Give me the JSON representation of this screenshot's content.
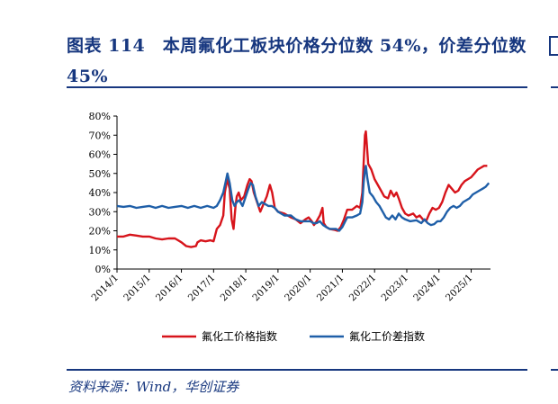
{
  "header": {
    "title": "图表 114　本周氟化工板块价格分位数 54%，价差分位数 45%"
  },
  "footer": {
    "source": "资料来源：Wind，华创证券"
  },
  "chart_data": {
    "type": "line",
    "title": "",
    "xlabel": "",
    "ylabel": "",
    "ylim": [
      0,
      80
    ],
    "yticks": [
      "0%",
      "10%",
      "20%",
      "30%",
      "40%",
      "50%",
      "60%",
      "70%",
      "80%"
    ],
    "xticks": [
      "2014/1",
      "2015/1",
      "2016/1",
      "2017/1",
      "2018/1",
      "2019/1",
      "2020/1",
      "2021/1",
      "2022/1",
      "2023/1",
      "2024/1",
      "2025/1"
    ],
    "grid": false,
    "legend_position": "bottom",
    "x_range": [
      2014.0,
      2025.6
    ],
    "series": [
      {
        "name": "氟化工价格指数",
        "color": "#d7141b",
        "points": [
          [
            2014.0,
            17
          ],
          [
            2014.2,
            17
          ],
          [
            2014.4,
            18
          ],
          [
            2014.6,
            17.5
          ],
          [
            2014.8,
            17
          ],
          [
            2015.0,
            17
          ],
          [
            2015.2,
            16
          ],
          [
            2015.4,
            15.5
          ],
          [
            2015.6,
            16
          ],
          [
            2015.8,
            16
          ],
          [
            2015.9,
            15
          ],
          [
            2016.0,
            14
          ],
          [
            2016.15,
            12
          ],
          [
            2016.3,
            11.5
          ],
          [
            2016.45,
            12
          ],
          [
            2016.5,
            14
          ],
          [
            2016.6,
            15
          ],
          [
            2016.75,
            14.5
          ],
          [
            2016.9,
            15
          ],
          [
            2017.0,
            14.5
          ],
          [
            2017.1,
            21
          ],
          [
            2017.2,
            23
          ],
          [
            2017.3,
            28
          ],
          [
            2017.35,
            40
          ],
          [
            2017.42,
            47
          ],
          [
            2017.5,
            42
          ],
          [
            2017.56,
            26
          ],
          [
            2017.62,
            21
          ],
          [
            2017.68,
            33
          ],
          [
            2017.72,
            38
          ],
          [
            2017.78,
            40
          ],
          [
            2017.85,
            36
          ],
          [
            2017.95,
            38
          ],
          [
            2018.05,
            44
          ],
          [
            2018.12,
            47
          ],
          [
            2018.18,
            46
          ],
          [
            2018.25,
            40
          ],
          [
            2018.35,
            35
          ],
          [
            2018.45,
            30
          ],
          [
            2018.55,
            34
          ],
          [
            2018.65,
            38
          ],
          [
            2018.75,
            44
          ],
          [
            2018.82,
            40
          ],
          [
            2018.9,
            32
          ],
          [
            2019.0,
            30
          ],
          [
            2019.2,
            29
          ],
          [
            2019.4,
            27
          ],
          [
            2019.55,
            26
          ],
          [
            2019.7,
            24
          ],
          [
            2019.85,
            26
          ],
          [
            2019.95,
            27
          ],
          [
            2020.05,
            25
          ],
          [
            2020.12,
            23
          ],
          [
            2020.2,
            25
          ],
          [
            2020.3,
            28
          ],
          [
            2020.38,
            32
          ],
          [
            2020.42,
            24
          ],
          [
            2020.5,
            22
          ],
          [
            2020.6,
            21
          ],
          [
            2020.75,
            20.5
          ],
          [
            2020.85,
            20
          ],
          [
            2020.95,
            22
          ],
          [
            2021.05,
            26
          ],
          [
            2021.15,
            31
          ],
          [
            2021.3,
            31
          ],
          [
            2021.45,
            33
          ],
          [
            2021.55,
            32
          ],
          [
            2021.62,
            40
          ],
          [
            2021.66,
            55
          ],
          [
            2021.7,
            70
          ],
          [
            2021.73,
            72
          ],
          [
            2021.76,
            65
          ],
          [
            2021.8,
            55
          ],
          [
            2021.9,
            52
          ],
          [
            2022.0,
            47
          ],
          [
            2022.1,
            44
          ],
          [
            2022.2,
            41
          ],
          [
            2022.3,
            38
          ],
          [
            2022.42,
            37
          ],
          [
            2022.5,
            41
          ],
          [
            2022.6,
            38
          ],
          [
            2022.68,
            40
          ],
          [
            2022.75,
            37
          ],
          [
            2022.85,
            32
          ],
          [
            2022.95,
            29
          ],
          [
            2023.05,
            28
          ],
          [
            2023.2,
            29
          ],
          [
            2023.3,
            27
          ],
          [
            2023.4,
            28
          ],
          [
            2023.5,
            26
          ],
          [
            2023.6,
            25
          ],
          [
            2023.7,
            29
          ],
          [
            2023.8,
            32
          ],
          [
            2023.9,
            31
          ],
          [
            2024.0,
            32
          ],
          [
            2024.1,
            35
          ],
          [
            2024.2,
            40
          ],
          [
            2024.3,
            44
          ],
          [
            2024.4,
            42
          ],
          [
            2024.5,
            40
          ],
          [
            2024.6,
            41
          ],
          [
            2024.7,
            44
          ],
          [
            2024.8,
            46
          ],
          [
            2024.9,
            47
          ],
          [
            2025.0,
            48
          ],
          [
            2025.1,
            50
          ],
          [
            2025.2,
            52
          ],
          [
            2025.3,
            53
          ],
          [
            2025.4,
            54
          ],
          [
            2025.5,
            54
          ]
        ]
      },
      {
        "name": "氟化工价差指数",
        "color": "#1f5fa8",
        "points": [
          [
            2014.0,
            33
          ],
          [
            2014.2,
            32.5
          ],
          [
            2014.4,
            33
          ],
          [
            2014.6,
            32
          ],
          [
            2014.8,
            32.5
          ],
          [
            2015.0,
            33
          ],
          [
            2015.2,
            32
          ],
          [
            2015.4,
            33
          ],
          [
            2015.6,
            32
          ],
          [
            2015.8,
            32.5
          ],
          [
            2016.0,
            33
          ],
          [
            2016.2,
            32
          ],
          [
            2016.4,
            33
          ],
          [
            2016.6,
            32
          ],
          [
            2016.8,
            33
          ],
          [
            2017.0,
            32
          ],
          [
            2017.1,
            33
          ],
          [
            2017.2,
            36
          ],
          [
            2017.3,
            40
          ],
          [
            2017.38,
            46
          ],
          [
            2017.43,
            50
          ],
          [
            2017.5,
            45
          ],
          [
            2017.58,
            36
          ],
          [
            2017.65,
            33
          ],
          [
            2017.72,
            35
          ],
          [
            2017.8,
            36
          ],
          [
            2017.9,
            33
          ],
          [
            2018.0,
            38
          ],
          [
            2018.08,
            42
          ],
          [
            2018.15,
            45
          ],
          [
            2018.22,
            44
          ],
          [
            2018.3,
            38
          ],
          [
            2018.4,
            33
          ],
          [
            2018.5,
            35
          ],
          [
            2018.6,
            34
          ],
          [
            2018.7,
            33
          ],
          [
            2018.8,
            33
          ],
          [
            2018.9,
            32
          ],
          [
            2019.0,
            30
          ],
          [
            2019.2,
            28
          ],
          [
            2019.4,
            28
          ],
          [
            2019.55,
            26
          ],
          [
            2019.7,
            25
          ],
          [
            2019.85,
            25
          ],
          [
            2020.0,
            25
          ],
          [
            2020.1,
            24
          ],
          [
            2020.2,
            24
          ],
          [
            2020.3,
            25
          ],
          [
            2020.4,
            23
          ],
          [
            2020.5,
            22
          ],
          [
            2020.6,
            21
          ],
          [
            2020.8,
            21
          ],
          [
            2020.9,
            20
          ],
          [
            2021.0,
            22
          ],
          [
            2021.15,
            27
          ],
          [
            2021.3,
            27
          ],
          [
            2021.45,
            28
          ],
          [
            2021.55,
            29
          ],
          [
            2021.62,
            35
          ],
          [
            2021.66,
            45
          ],
          [
            2021.7,
            52
          ],
          [
            2021.73,
            54
          ],
          [
            2021.77,
            48
          ],
          [
            2021.85,
            40
          ],
          [
            2021.95,
            38
          ],
          [
            2022.05,
            35
          ],
          [
            2022.15,
            33
          ],
          [
            2022.25,
            30
          ],
          [
            2022.35,
            27
          ],
          [
            2022.45,
            26
          ],
          [
            2022.55,
            28
          ],
          [
            2022.65,
            26
          ],
          [
            2022.75,
            29
          ],
          [
            2022.85,
            27
          ],
          [
            2022.95,
            26
          ],
          [
            2023.1,
            25
          ],
          [
            2023.3,
            25.5
          ],
          [
            2023.45,
            24
          ],
          [
            2023.55,
            26
          ],
          [
            2023.65,
            24
          ],
          [
            2023.75,
            23
          ],
          [
            2023.85,
            23.5
          ],
          [
            2023.95,
            25
          ],
          [
            2024.05,
            25
          ],
          [
            2024.15,
            27
          ],
          [
            2024.25,
            30
          ],
          [
            2024.35,
            32
          ],
          [
            2024.45,
            33
          ],
          [
            2024.55,
            32
          ],
          [
            2024.65,
            33
          ],
          [
            2024.75,
            35
          ],
          [
            2024.85,
            36
          ],
          [
            2024.95,
            37
          ],
          [
            2025.05,
            39
          ],
          [
            2025.15,
            40
          ],
          [
            2025.25,
            41
          ],
          [
            2025.35,
            42
          ],
          [
            2025.45,
            43
          ],
          [
            2025.55,
            45
          ]
        ]
      }
    ]
  }
}
